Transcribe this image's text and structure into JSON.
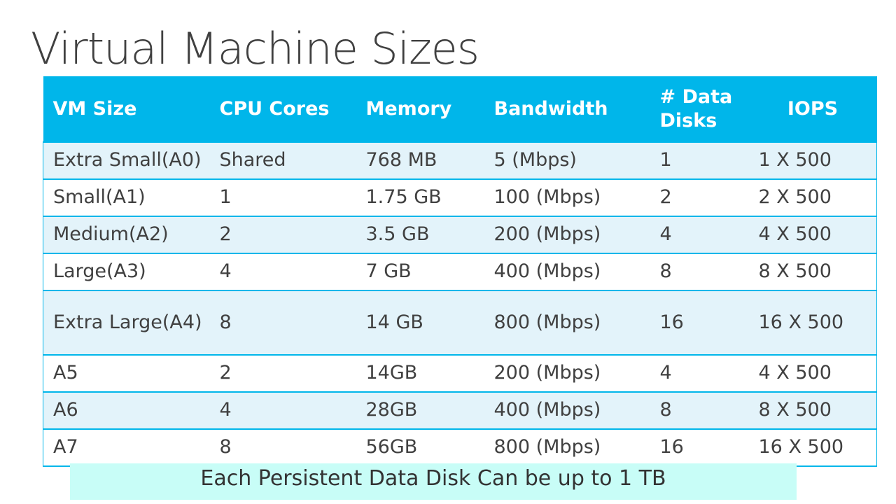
{
  "slide": {
    "title": "Virtual Machine Sizes",
    "footnote": "Each Persistent Data Disk Can be up to 1 TB"
  },
  "colors": {
    "header_bg": "#00b6ea",
    "header_text": "#ffffff",
    "row_alt_bg": "#e3f3fa",
    "footnote_bg": "#c8fdf7",
    "title_text": "#404040"
  },
  "table": {
    "headers": {
      "vm_size": "VM Size",
      "cpu_cores": "CPU Cores",
      "memory": "Memory",
      "bandwidth": "Bandwidth",
      "data_disks": "# Data Disks",
      "iops": "IOPS"
    },
    "rows": [
      {
        "vm_size": "Extra Small(A0)",
        "cpu_cores": "Shared",
        "memory": "768 MB",
        "bandwidth": "5 (Mbps)",
        "data_disks": "1",
        "iops": "1 X 500"
      },
      {
        "vm_size": "Small(A1)",
        "cpu_cores": "1",
        "memory": "1.75 GB",
        "bandwidth": "100 (Mbps)",
        "data_disks": "2",
        "iops": "2 X 500"
      },
      {
        "vm_size": "Medium(A2)",
        "cpu_cores": "2",
        "memory": "3.5 GB",
        "bandwidth": "200 (Mbps)",
        "data_disks": "4",
        "iops": "4 X 500"
      },
      {
        "vm_size": "Large(A3)",
        "cpu_cores": "4",
        "memory": "7 GB",
        "bandwidth": "400 (Mbps)",
        "data_disks": "8",
        "iops": "8 X 500"
      },
      {
        "vm_size": "Extra Large(A4)",
        "cpu_cores": "8",
        "memory": "14 GB",
        "bandwidth": "800 (Mbps)",
        "data_disks": "16",
        "iops": "16 X 500"
      },
      {
        "vm_size": "A5",
        "cpu_cores": "2",
        "memory": "14GB",
        "bandwidth": "200 (Mbps)",
        "data_disks": "4",
        "iops": "4 X 500"
      },
      {
        "vm_size": "A6",
        "cpu_cores": "4",
        "memory": "28GB",
        "bandwidth": "400 (Mbps)",
        "data_disks": "8",
        "iops": "8 X 500"
      },
      {
        "vm_size": "A7",
        "cpu_cores": "8",
        "memory": "56GB",
        "bandwidth": "800 (Mbps)",
        "data_disks": "16",
        "iops": "16 X 500"
      }
    ]
  }
}
